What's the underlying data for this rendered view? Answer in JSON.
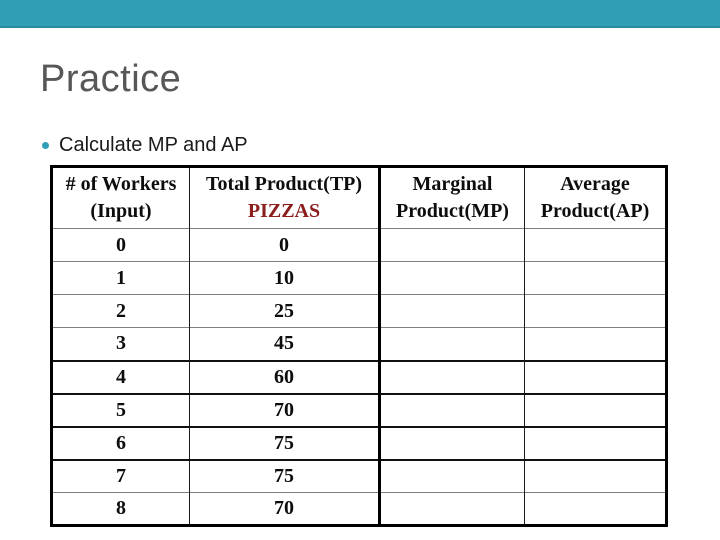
{
  "slide": {
    "title": "Practice",
    "bullet_text": "Calculate MP and AP",
    "accent_color": "#2E9FB5",
    "title_color": "#575757"
  },
  "table": {
    "header": {
      "col1_line1": "# of Workers",
      "col1_line2": "(Input)",
      "col2_line1": "Total Product(TP)",
      "col2_line2": "PIZZAS",
      "col2_line2_color": "#8B1D1D",
      "col3_line1": "Marginal",
      "col3_line2": "Product(MP)",
      "col4_line1": "Average",
      "col4_line2": "Product(AP)"
    },
    "rows": [
      {
        "workers": "0",
        "tp": "0",
        "mp": "",
        "ap": ""
      },
      {
        "workers": "1",
        "tp": "10",
        "mp": "",
        "ap": ""
      },
      {
        "workers": "2",
        "tp": "25",
        "mp": "",
        "ap": ""
      },
      {
        "workers": "3",
        "tp": "45",
        "mp": "",
        "ap": ""
      },
      {
        "workers": "4",
        "tp": "60",
        "mp": "",
        "ap": ""
      },
      {
        "workers": "5",
        "tp": "70",
        "mp": "",
        "ap": ""
      },
      {
        "workers": "6",
        "tp": "75",
        "mp": "",
        "ap": ""
      },
      {
        "workers": "7",
        "tp": "75",
        "mp": "",
        "ap": ""
      },
      {
        "workers": "8",
        "tp": "70",
        "mp": "",
        "ap": ""
      }
    ]
  }
}
